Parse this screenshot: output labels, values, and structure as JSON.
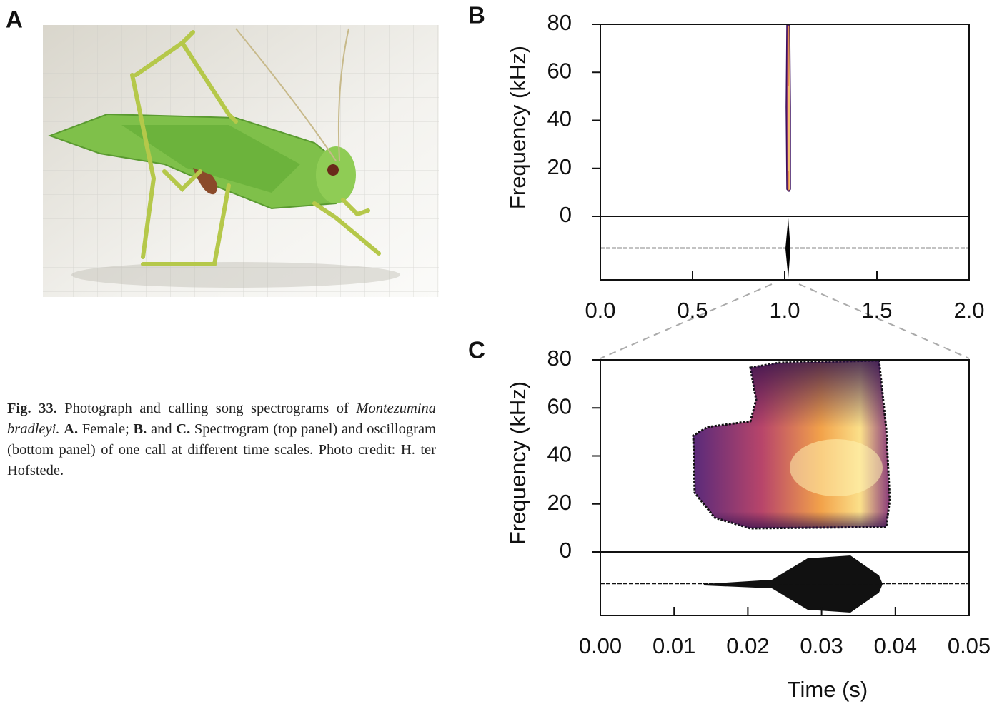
{
  "panel_labels": [
    "A",
    "B",
    "C"
  ],
  "caption": [
    {
      "text": "Fig. 33.",
      "style": "bold"
    },
    {
      "text": " Photograph and calling song spectrograms of ",
      "style": "normal"
    },
    {
      "text": "Montezumina bradleyi.",
      "style": "italic"
    },
    {
      "text": " ",
      "style": "normal"
    },
    {
      "text": "A.",
      "style": "bold"
    },
    {
      "text": " Female; ",
      "style": "normal"
    },
    {
      "text": "B.",
      "style": "bold"
    },
    {
      "text": " and ",
      "style": "normal"
    },
    {
      "text": "C.",
      "style": "bold"
    },
    {
      "text": " Spectrogram (top panel) and oscillogram (bottom panel) of one call at different time scales. Photo credit: H. ter Hofstede.",
      "style": "normal"
    }
  ],
  "panel_b": {
    "ylabel": "Frequency (kHz)",
    "ylim": [
      0,
      80
    ],
    "yticks": [
      0,
      20,
      40,
      60,
      80
    ],
    "xlim": [
      0,
      2
    ],
    "xticks": [
      {
        "value": 0,
        "label": "0.0"
      },
      {
        "value": 0.5,
        "label": "0.5"
      },
      {
        "value": 1,
        "label": "1.0"
      },
      {
        "value": 1.5,
        "label": "1.5"
      },
      {
        "value": 2,
        "label": "2.0"
      }
    ]
  },
  "panel_c": {
    "ylabel": "Frequency (kHz)",
    "ylim": [
      0,
      80
    ],
    "yticks": [
      0,
      20,
      40,
      60,
      80
    ],
    "xlim": [
      0,
      0.05
    ],
    "xticks": [
      {
        "value": 0,
        "label": "0.00"
      },
      {
        "value": 0.01,
        "label": "0.01"
      },
      {
        "value": 0.02,
        "label": "0.02"
      },
      {
        "value": 0.03,
        "label": "0.03"
      },
      {
        "value": 0.04,
        "label": "0.04"
      },
      {
        "value": 0.05,
        "label": "0.05"
      }
    ],
    "xlabel": "Time (s)"
  }
}
